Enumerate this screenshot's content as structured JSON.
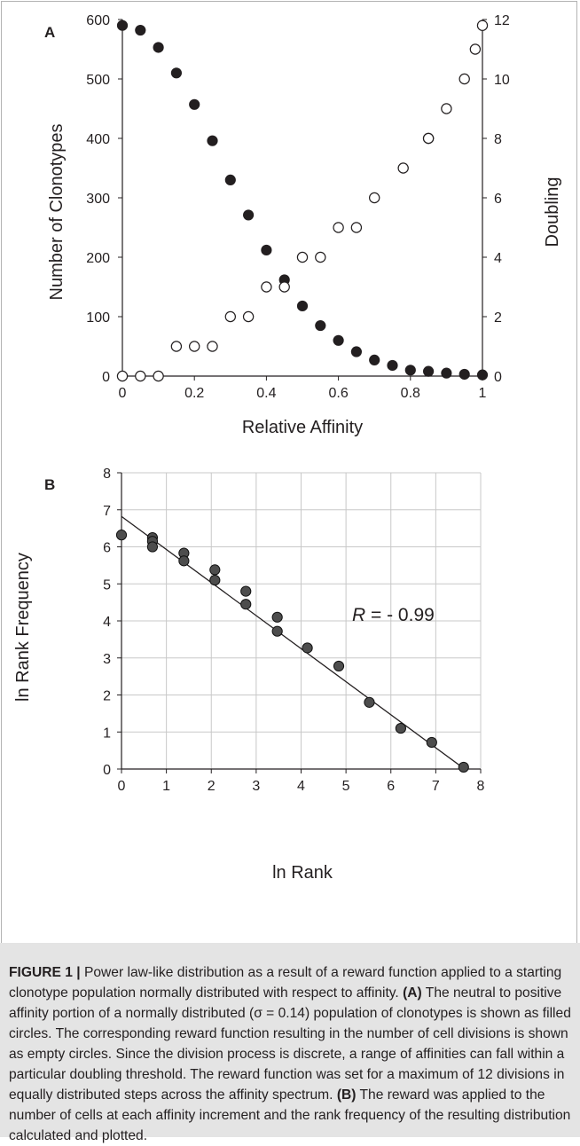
{
  "panels": [
    {
      "letter": "A",
      "chart_data": {
        "type": "scatter",
        "xlabel": "Relative Affinity",
        "ylabel": "Number of Clonotypes",
        "y2label": "Doubling",
        "xlim": [
          0,
          1
        ],
        "ylim": [
          0,
          600
        ],
        "y2lim": [
          0,
          12
        ],
        "xticks": [
          0,
          0.2,
          0.4,
          0.6,
          0.8,
          1
        ],
        "xtick_labels": [
          "0",
          "0.2",
          "0.4",
          "0.6",
          "0.8",
          "1"
        ],
        "yticks": [
          0,
          100,
          200,
          300,
          400,
          500,
          600
        ],
        "y2ticks": [
          0,
          2,
          4,
          6,
          8,
          10,
          12
        ],
        "grid": false,
        "series": [
          {
            "marker": "filled-circle",
            "axis": "left",
            "x": [
              0,
              0.05,
              0.1,
              0.15,
              0.2,
              0.25,
              0.3,
              0.35,
              0.4,
              0.45,
              0.5,
              0.55,
              0.6,
              0.65,
              0.7,
              0.75,
              0.8,
              0.85,
              0.9,
              0.95,
              1
            ],
            "y": [
              590,
              582,
              553,
              510,
              457,
              396,
              330,
              271,
              212,
              162,
              118,
              85,
              60,
              41,
              27,
              18,
              10,
              8,
              5,
              3,
              2
            ]
          },
          {
            "marker": "open-circle",
            "axis": "right",
            "x": [
              0,
              0.05,
              0.1,
              0.15,
              0.2,
              0.25,
              0.3,
              0.35,
              0.4,
              0.45,
              0.5,
              0.55,
              0.6,
              0.65,
              0.7,
              0.78,
              0.85,
              0.85,
              0.9,
              0.95,
              0.98,
              1
            ],
            "y": [
              0,
              0,
              0,
              1,
              1,
              1,
              2,
              2,
              3,
              3,
              4,
              4,
              5,
              5,
              6,
              7,
              8,
              8,
              9,
              10,
              11,
              11.8
            ]
          }
        ]
      }
    },
    {
      "letter": "B",
      "chart_data": {
        "type": "scatter",
        "xlabel": "ln Rank",
        "ylabel": "ln Rank Frequency",
        "xlim": [
          0,
          8
        ],
        "ylim": [
          0,
          8
        ],
        "xticks": [
          0,
          1,
          2,
          3,
          4,
          5,
          6,
          7,
          8
        ],
        "yticks": [
          0,
          1,
          2,
          3,
          4,
          5,
          6,
          7,
          8
        ],
        "grid": true,
        "annotation": {
          "italic": "R",
          "text": " = - 0.99"
        },
        "trendline": {
          "x": [
            0,
            7.62
          ],
          "y": [
            6.82,
            0.02
          ]
        },
        "series": [
          {
            "marker": "gray-filled-circle",
            "x": [
              0,
              0.69,
              0.69,
              0.69,
              1.39,
              1.39,
              2.08,
              2.08,
              2.77,
              2.77,
              3.47,
              3.47,
              4.14,
              4.84,
              5.52,
              6.22,
              6.91,
              7.62
            ],
            "y": [
              6.32,
              6.25,
              6.15,
              6.0,
              5.83,
              5.62,
              5.38,
              5.1,
              4.8,
              4.45,
              4.1,
              3.72,
              3.27,
              2.78,
              1.8,
              1.1,
              0.72,
              0.05
            ]
          }
        ]
      }
    }
  ],
  "caption": {
    "figure_label": "FIGURE 1 |",
    "intro": " Power law-like distribution as a result of a reward function applied to a starting clonotype population normally distributed with respect to affinity. ",
    "a_label": "(A)",
    "a_text": " The neutral to positive affinity portion of a normally distributed (σ = 0.14) population of clonotypes is shown as filled circles. The corresponding reward function resulting in the number of cell divisions is shown as empty circles. Since the division process is discrete, a range of affinities can fall within a particular doubling threshold. The reward function was set for a maximum of 12 divisions in equally distributed steps across the affinity spectrum. ",
    "b_label": "(B)",
    "b_text": " The reward was applied to the number of cells at each affinity increment and the rank frequency of the resulting distribution calculated and plotted."
  },
  "colors": {
    "filled_marker": "#231f20",
    "gray_marker": "#4d4d4d",
    "axis": "#231f20",
    "grid": "#c8c8c8",
    "caption_bg": "#e4e4e4"
  }
}
